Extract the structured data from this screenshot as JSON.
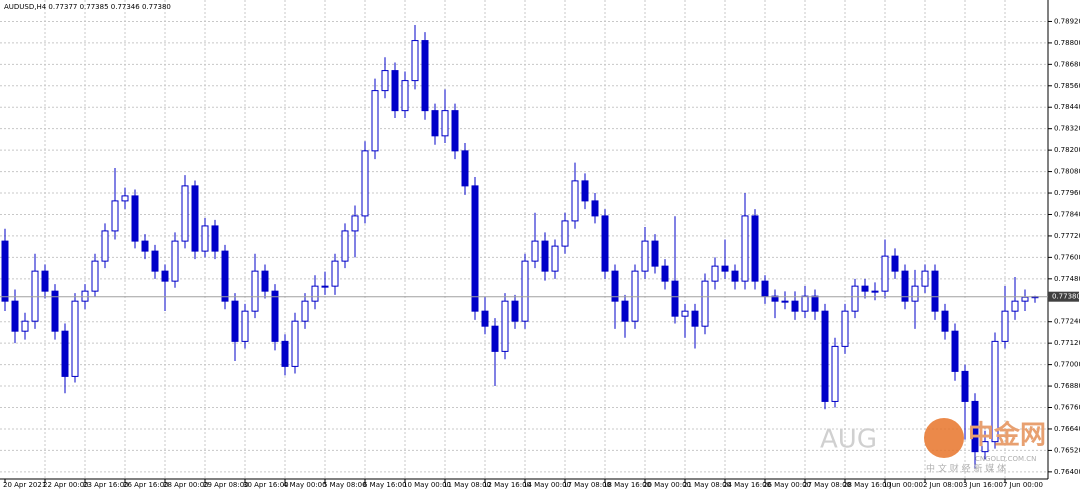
{
  "chart_data": {
    "type": "candlestick",
    "title": "AUDUSD,H4 0.77377 0.77385 0.77346 0.77380",
    "color": "#0000c8",
    "grid": true,
    "ylim": [
      0.7636,
      0.7904
    ],
    "yticks": [
      {
        "value": 0.7892,
        "label": "0.78920"
      },
      {
        "value": 0.788,
        "label": "0.78800"
      },
      {
        "value": 0.7868,
        "label": "0.78680"
      },
      {
        "value": 0.7856,
        "label": "0.78560"
      },
      {
        "value": 0.7844,
        "label": "0.78440"
      },
      {
        "value": 0.7832,
        "label": "0.78320"
      },
      {
        "value": 0.782,
        "label": "0.78200"
      },
      {
        "value": 0.7808,
        "label": "0.78080"
      },
      {
        "value": 0.7796,
        "label": "0.77960"
      },
      {
        "value": 0.7784,
        "label": "0.77840"
      },
      {
        "value": 0.7772,
        "label": "0.77720"
      },
      {
        "value": 0.776,
        "label": "0.77600"
      },
      {
        "value": 0.7748,
        "label": "0.77480"
      },
      {
        "value": 0.7724,
        "label": "0.77240"
      },
      {
        "value": 0.7712,
        "label": "0.77120"
      },
      {
        "value": 0.77,
        "label": "0.77000"
      },
      {
        "value": 0.7688,
        "label": "0.76880"
      },
      {
        "value": 0.7676,
        "label": "0.76760"
      },
      {
        "value": 0.7664,
        "label": "0.76640"
      },
      {
        "value": 0.7652,
        "label": "0.76520"
      },
      {
        "value": 0.764,
        "label": "0.76400"
      }
    ],
    "current_price": {
      "value": 0.7738,
      "label": "0.77380"
    },
    "categories": [
      "20 Apr 2021",
      null,
      null,
      null,
      "22 Apr 00:00",
      null,
      null,
      null,
      "23 Apr 16:00",
      null,
      null,
      null,
      "26 Apr 16:00",
      null,
      null,
      null,
      "28 Apr 00:00",
      null,
      null,
      null,
      "29 Apr 08:00",
      null,
      null,
      null,
      "30 Apr 16:00",
      null,
      null,
      null,
      "4 May 00:00",
      null,
      null,
      null,
      "5 May 08:00",
      null,
      null,
      null,
      "6 May 16:00",
      null,
      null,
      null,
      "10 May 00:00",
      null,
      null,
      null,
      "11 May 08:00",
      null,
      null,
      null,
      "12 May 16:00",
      null,
      null,
      null,
      "14 May 00:00",
      null,
      null,
      null,
      "17 May 08:00",
      null,
      null,
      null,
      "18 May 16:00",
      null,
      null,
      null,
      "20 May 00:00",
      null,
      null,
      null,
      "21 May 08:00",
      null,
      null,
      null,
      "24 May 16:00",
      null,
      null,
      null,
      "26 May 00:00",
      null,
      null,
      null,
      "27 May 08:00",
      null,
      null,
      null,
      "28 May 16:00",
      null,
      null,
      null,
      "1 Jun 00:00",
      null,
      null,
      null,
      "2 Jun 08:00",
      null,
      null,
      null,
      "3 Jun 16:00",
      null,
      null,
      null,
      "7 Jun 00:00",
      null,
      null,
      null
    ],
    "open": [
      0.77691,
      0.77355,
      0.77187,
      0.77243,
      0.77523,
      0.77411,
      0.77187,
      0.76934,
      0.77355,
      0.77411,
      0.77579,
      0.77748,
      0.77916,
      0.77944,
      0.77691,
      0.77635,
      0.77523,
      0.77467,
      0.77691,
      0.78,
      0.77635,
      0.77776,
      0.77635,
      0.77355,
      0.7713,
      0.77299,
      0.77523,
      0.77411,
      0.7713,
      0.7699,
      0.77243,
      0.77355,
      0.77439,
      0.77439,
      0.77579,
      0.77748,
      0.77832,
      0.78196,
      0.78533,
      0.78645,
      0.78421,
      0.78589,
      0.78813,
      0.78421,
      0.7828,
      0.78421,
      0.78196,
      0.78,
      0.77299,
      0.77215,
      0.77074,
      0.77355,
      0.77243,
      0.77579,
      0.77691,
      0.77523,
      0.77663,
      0.77804,
      0.78028,
      0.77916,
      0.77832,
      0.77523,
      0.77355,
      0.77243,
      0.77523,
      0.77691,
      0.77551,
      0.77467,
      0.77271,
      0.77299,
      0.77215,
      0.77467,
      0.77551,
      0.77523,
      0.77467,
      0.77832,
      0.77467,
      0.77383,
      0.77355,
      0.77355,
      0.77299,
      0.77383,
      0.77299,
      0.76794,
      0.77102,
      0.77299,
      0.77439,
      0.77411,
      0.77411,
      0.77607,
      0.77523,
      0.77355,
      0.77439,
      0.77523,
      0.77299,
      0.77187,
      0.76962,
      0.76794,
      0.76513,
      0.76569,
      0.7713,
      0.77299,
      0.77355,
      0.77377
    ],
    "high": [
      0.7776,
      0.7742,
      0.7729,
      0.7762,
      0.7756,
      0.7745,
      0.7723,
      0.774,
      0.7745,
      0.7762,
      0.7779,
      0.781,
      0.7799,
      0.7798,
      0.7773,
      0.7767,
      0.7756,
      0.7774,
      0.7806,
      0.7803,
      0.7782,
      0.7781,
      0.7767,
      0.774,
      0.7734,
      0.7762,
      0.7756,
      0.7745,
      0.7717,
      0.7729,
      0.774,
      0.775,
      0.7752,
      0.7762,
      0.7779,
      0.7789,
      0.7825,
      0.786,
      0.7872,
      0.7869,
      0.7864,
      0.789,
      0.7886,
      0.7846,
      0.7854,
      0.7846,
      0.7824,
      0.7805,
      0.7738,
      0.7726,
      0.774,
      0.7739,
      0.7762,
      0.7785,
      0.7774,
      0.777,
      0.7785,
      0.7813,
      0.7807,
      0.7796,
      0.7787,
      0.7756,
      0.7739,
      0.7756,
      0.7777,
      0.7773,
      0.7759,
      0.7783,
      0.7734,
      0.7734,
      0.7751,
      0.776,
      0.777,
      0.7756,
      0.7796,
      0.7787,
      0.775,
      0.7742,
      0.7741,
      0.7741,
      0.7744,
      0.7742,
      0.7734,
      0.7715,
      0.7734,
      0.7748,
      0.7748,
      0.7746,
      0.777,
      0.7765,
      0.7756,
      0.7753,
      0.7756,
      0.7756,
      0.7734,
      0.7723,
      0.77,
      0.7684,
      0.7663,
      0.7718,
      0.7744,
      0.7749,
      0.7742,
      0.77385
    ],
    "low": [
      0.773,
      0.7712,
      0.7714,
      0.772,
      0.7737,
      0.7714,
      0.7684,
      0.769,
      0.7731,
      0.7738,
      0.7754,
      0.777,
      0.7787,
      0.7765,
      0.7759,
      0.7748,
      0.773,
      0.7743,
      0.7765,
      0.7759,
      0.776,
      0.7759,
      0.7731,
      0.7702,
      0.7709,
      0.7726,
      0.7737,
      0.7708,
      0.7694,
      0.7695,
      0.772,
      0.7731,
      0.7739,
      0.7739,
      0.7754,
      0.776,
      0.7779,
      0.7815,
      0.7849,
      0.7838,
      0.7838,
      0.7854,
      0.7837,
      0.7823,
      0.7824,
      0.7815,
      0.7795,
      0.7725,
      0.7717,
      0.7688,
      0.7703,
      0.772,
      0.772,
      0.7754,
      0.7747,
      0.7748,
      0.7762,
      0.7776,
      0.7787,
      0.7779,
      0.7748,
      0.772,
      0.7715,
      0.772,
      0.7748,
      0.7751,
      0.7742,
      0.7723,
      0.7715,
      0.7709,
      0.7717,
      0.7742,
      0.7748,
      0.7742,
      0.7742,
      0.7742,
      0.7734,
      0.7726,
      0.7731,
      0.7725,
      0.7726,
      0.7725,
      0.7675,
      0.7676,
      0.7706,
      0.7726,
      0.7737,
      0.7736,
      0.7737,
      0.7748,
      0.7731,
      0.772,
      0.774,
      0.7725,
      0.7714,
      0.7691,
      0.7658,
      0.7642,
      0.7647,
      0.7653,
      0.7709,
      0.7725,
      0.773,
      0.77346
    ],
    "close": [
      0.77355,
      0.77187,
      0.77243,
      0.77523,
      0.77411,
      0.77187,
      0.76934,
      0.77355,
      0.77411,
      0.77579,
      0.77748,
      0.77916,
      0.77944,
      0.77691,
      0.77635,
      0.77523,
      0.77467,
      0.77691,
      0.78,
      0.77635,
      0.77776,
      0.77635,
      0.77355,
      0.7713,
      0.77299,
      0.77523,
      0.77411,
      0.7713,
      0.7699,
      0.77243,
      0.77355,
      0.77439,
      0.77439,
      0.77579,
      0.77748,
      0.77832,
      0.78196,
      0.78533,
      0.78645,
      0.78421,
      0.78589,
      0.78813,
      0.78421,
      0.7828,
      0.78421,
      0.78196,
      0.78,
      0.77299,
      0.77215,
      0.77074,
      0.77355,
      0.77243,
      0.77579,
      0.77691,
      0.77523,
      0.77663,
      0.77804,
      0.78028,
      0.77916,
      0.77832,
      0.77523,
      0.77355,
      0.77243,
      0.77523,
      0.77691,
      0.77551,
      0.77467,
      0.77271,
      0.77299,
      0.77215,
      0.77467,
      0.77551,
      0.77523,
      0.77467,
      0.77832,
      0.77467,
      0.77383,
      0.77355,
      0.77355,
      0.77299,
      0.77383,
      0.77299,
      0.76794,
      0.77102,
      0.77299,
      0.77439,
      0.77411,
      0.77411,
      0.77607,
      0.77523,
      0.77355,
      0.77439,
      0.77523,
      0.77299,
      0.77187,
      0.76962,
      0.76794,
      0.76513,
      0.76569,
      0.7713,
      0.77299,
      0.77355,
      0.77377,
      0.7738
    ],
    "watermark": "AUG",
    "logo": {
      "name": "中金网",
      "site": "CNGOLD.COM.CN",
      "tagline": "中 文 财 经 新 媒 体"
    }
  }
}
